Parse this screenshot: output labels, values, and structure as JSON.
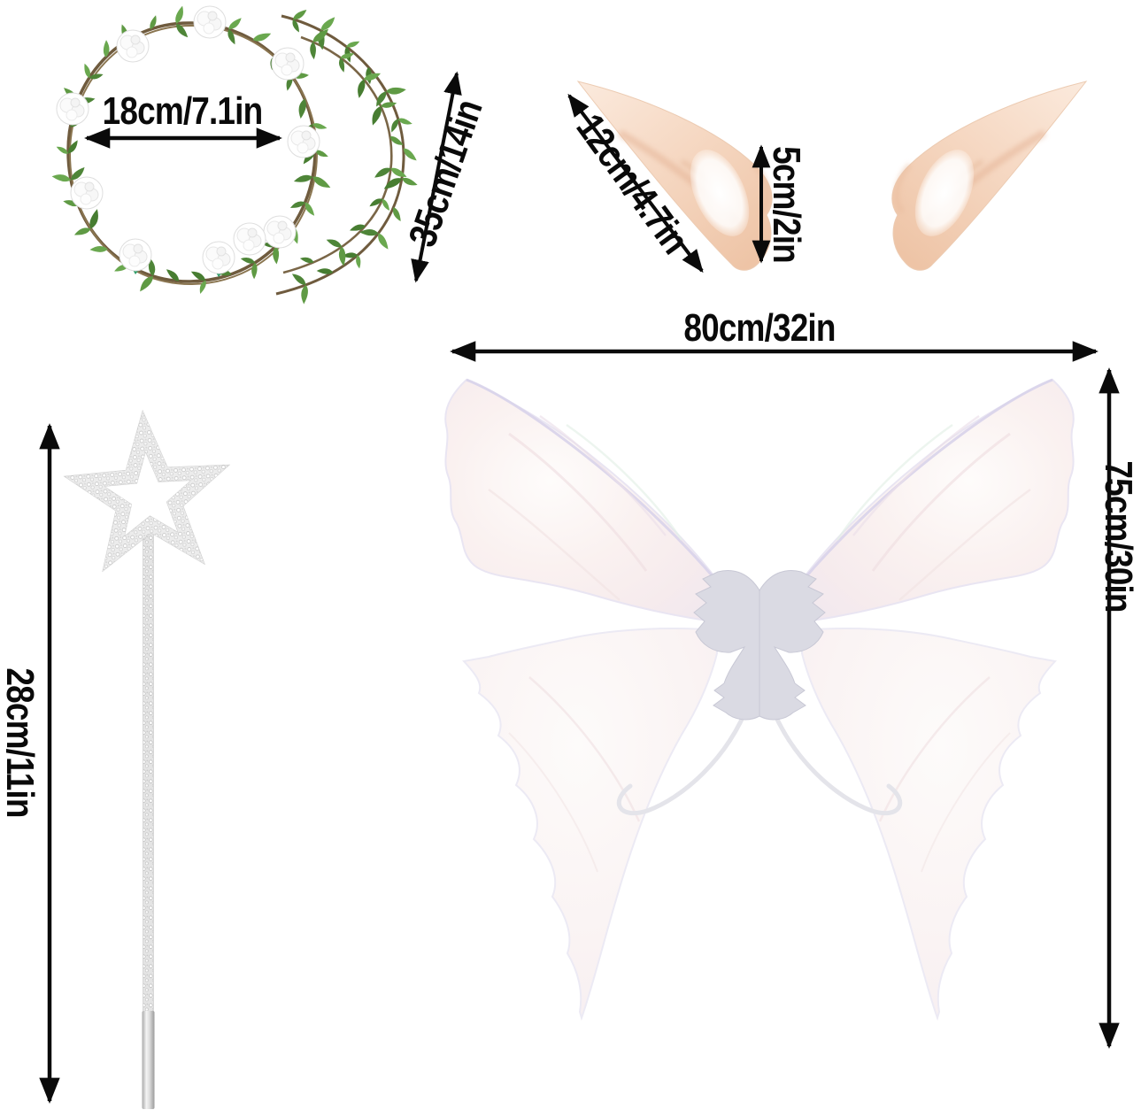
{
  "page": {
    "background": "#ffffff",
    "description": "Fairy costume accessories size diagram: flower crown with vine, elf ears, butterfly fairy wings, star wand"
  },
  "labels": {
    "crown_diameter": "18cm/7.1in",
    "vine_length": "35cm/14in",
    "ear_length": "12cm/4.7in",
    "ear_width": "5cm/2in",
    "wings_width": "80cm/32in",
    "wings_height": "75cm/30in",
    "wand_length": "28cm/11in"
  },
  "items": [
    {
      "id": "flower-crown",
      "name": "Flower crown headband with trailing leaf vine",
      "measurements": [
        {
          "dimension": "inner diameter",
          "value_cm": 18,
          "value_in": 7.1,
          "label": "18cm/7.1in"
        },
        {
          "dimension": "vine length",
          "value_cm": 35,
          "value_in": 14,
          "label": "35cm/14in"
        }
      ]
    },
    {
      "id": "elf-ears",
      "name": "Pair of pointed elf ears",
      "measurements": [
        {
          "dimension": "length",
          "value_cm": 12,
          "value_in": 4.7,
          "label": "12cm/4.7in"
        },
        {
          "dimension": "height",
          "value_cm": 5,
          "value_in": 2,
          "label": "5cm/2in"
        }
      ]
    },
    {
      "id": "fairy-wings",
      "name": "Iridescent butterfly fairy wings",
      "measurements": [
        {
          "dimension": "width",
          "value_cm": 80,
          "value_in": 32,
          "label": "80cm/32in"
        },
        {
          "dimension": "height",
          "value_cm": 75,
          "value_in": 30,
          "label": "75cm/30in"
        }
      ]
    },
    {
      "id": "star-wand",
      "name": "Rhinestone star wand",
      "measurements": [
        {
          "dimension": "length",
          "value_cm": 28,
          "value_in": 11,
          "label": "28cm/11in"
        }
      ]
    }
  ],
  "style": {
    "annotation_color": "#0a0a0a",
    "leaf_green": "#5f9a44",
    "vine_brown": "#6f5b3e",
    "flower_white": "#ffffff",
    "ear_skin": "#f6dcc9",
    "ear_shade": "#e8bb9d",
    "wing_white": "#faf2f1",
    "wing_edge": "#dcd7ec",
    "wing_body_gray": "#dadae3",
    "star_silver": "#e9e9e9"
  }
}
